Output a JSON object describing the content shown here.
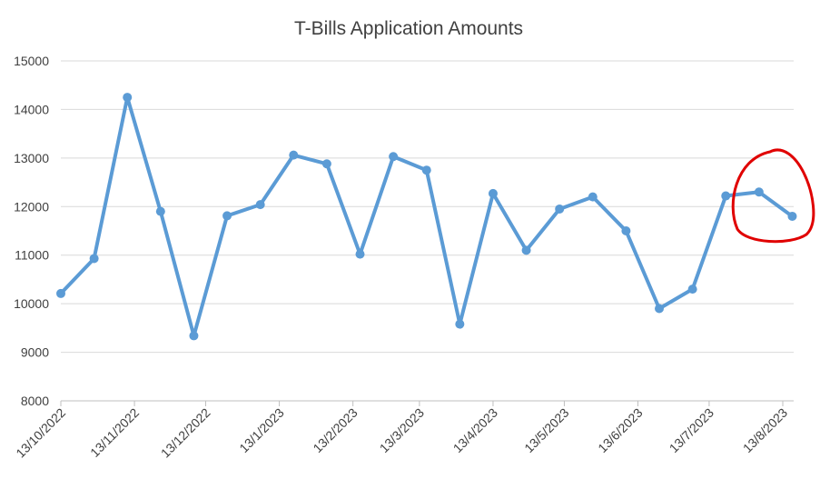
{
  "chart_data": {
    "type": "line",
    "title": "T-Bills Application Amounts",
    "xlabel": "",
    "ylabel": "",
    "ylim": [
      8000,
      15000
    ],
    "yticks": [
      "8000",
      "9000",
      "10000",
      "11000",
      "12000",
      "13000",
      "14000",
      "15000"
    ],
    "xticks": [
      {
        "label": "13/10/2022",
        "date": "2022-10-13"
      },
      {
        "label": "13/11/2022",
        "date": "2022-11-13"
      },
      {
        "label": "13/12/2022",
        "date": "2022-12-13"
      },
      {
        "label": "13/1/2023",
        "date": "2023-01-13"
      },
      {
        "label": "13/2/2023",
        "date": "2023-02-13"
      },
      {
        "label": "13/3/2023",
        "date": "2023-03-13"
      },
      {
        "label": "13/4/2023",
        "date": "2023-04-13"
      },
      {
        "label": "13/5/2023",
        "date": "2023-05-13"
      },
      {
        "label": "13/6/2023",
        "date": "2023-06-13"
      },
      {
        "label": "13/7/2023",
        "date": "2023-07-13"
      },
      {
        "label": "13/8/2023",
        "date": "2023-08-13"
      }
    ],
    "grid": true,
    "legend": "none",
    "series": [
      {
        "color": "#5B9BD5",
        "points": [
          {
            "x": "2022-10-13",
            "y": 10210
          },
          {
            "x": "2022-10-27",
            "y": 10930
          },
          {
            "x": "2022-11-10",
            "y": 14250
          },
          {
            "x": "2022-11-24",
            "y": 11900
          },
          {
            "x": "2022-12-08",
            "y": 9340
          },
          {
            "x": "2022-12-22",
            "y": 11810
          },
          {
            "x": "2023-01-05",
            "y": 12040
          },
          {
            "x": "2023-01-19",
            "y": 13060
          },
          {
            "x": "2023-02-02",
            "y": 12880
          },
          {
            "x": "2023-02-16",
            "y": 11020
          },
          {
            "x": "2023-03-02",
            "y": 13030
          },
          {
            "x": "2023-03-16",
            "y": 12750
          },
          {
            "x": "2023-03-30",
            "y": 9580
          },
          {
            "x": "2023-04-13",
            "y": 12270
          },
          {
            "x": "2023-04-27",
            "y": 11100
          },
          {
            "x": "2023-05-11",
            "y": 11950
          },
          {
            "x": "2023-05-25",
            "y": 12200
          },
          {
            "x": "2023-06-08",
            "y": 11500
          },
          {
            "x": "2023-06-22",
            "y": 9900
          },
          {
            "x": "2023-07-06",
            "y": 10300
          },
          {
            "x": "2023-07-20",
            "y": 12220
          },
          {
            "x": "2023-08-03",
            "y": 12300
          },
          {
            "x": "2023-08-17",
            "y": 11800
          }
        ]
      }
    ],
    "annotation": {
      "shape": "ellipse",
      "color": "#E00000",
      "note_points": [
        "2023-07-20",
        "2023-08-03",
        "2023-08-17"
      ]
    }
  }
}
